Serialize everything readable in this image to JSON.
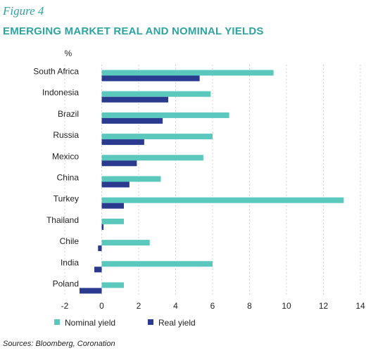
{
  "figure_label": "Figure 4",
  "source": "Sources: Bloomberg, Coronation",
  "colors": {
    "nominal": "#5bc8bd",
    "real": "#2a3a8f",
    "grid": "#d0d0d0",
    "accent": "#2fa3a0"
  },
  "chart_data": {
    "type": "bar",
    "orientation": "horizontal",
    "title": "EMERGING MARKET REAL AND NOMINAL YIELDS",
    "unit_label": "%",
    "categories": [
      "South Africa",
      "Indonesia",
      "Brazil",
      "Russia",
      "Mexico",
      "China",
      "Turkey",
      "Thailand",
      "Chile",
      "India",
      "Poland"
    ],
    "series": [
      {
        "name": "Nominal yield",
        "values": [
          9.3,
          5.9,
          6.9,
          6.0,
          5.5,
          3.2,
          13.1,
          1.2,
          2.6,
          6.0,
          1.2
        ]
      },
      {
        "name": "Real yield",
        "values": [
          5.3,
          3.6,
          3.3,
          2.3,
          1.9,
          1.5,
          1.2,
          0.1,
          -0.2,
          -0.4,
          -1.2
        ]
      }
    ],
    "xlim": [
      -2,
      14
    ],
    "xticks": [
      -2,
      0,
      2,
      4,
      6,
      8,
      10,
      12,
      14
    ],
    "grid": "vertical-dashed",
    "legend": "bottom"
  }
}
